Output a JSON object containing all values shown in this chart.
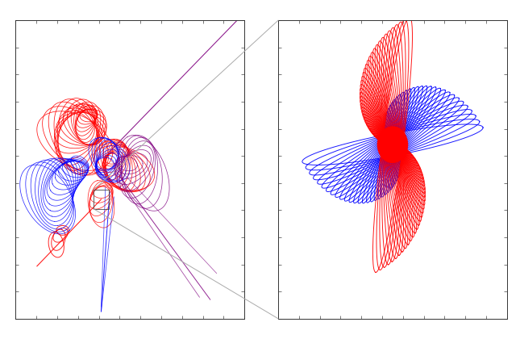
{
  "bg_color": "#ffffff",
  "red_color": "#ff0000",
  "blue_color": "#0000ff",
  "purple_color": "#800080",
  "connector_color": "#aaaaaa",
  "lw": 0.7
}
